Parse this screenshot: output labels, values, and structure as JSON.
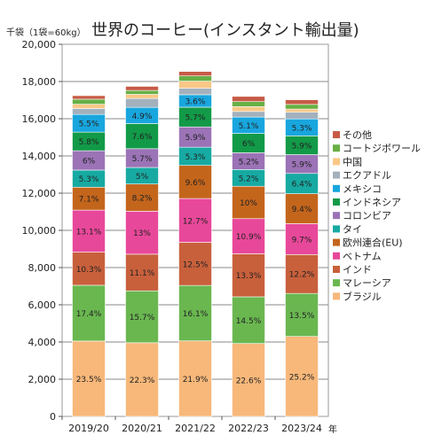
{
  "chart_data": {
    "type": "bar",
    "stacked": true,
    "title": "世界のコーヒー(インスタント輸出量)",
    "ylabel": "千袋（1袋=60kg）",
    "xunit": "年",
    "categories": [
      "2019/20",
      "2020/21",
      "2021/22",
      "2022/23",
      "2023/24"
    ],
    "ylim": [
      0,
      20000
    ],
    "yticks": [
      0,
      2000,
      4000,
      6000,
      8000,
      10000,
      12000,
      14000,
      16000,
      18000,
      20000
    ],
    "ytick_labels": [
      "0",
      "2,000",
      "4,000",
      "6,000",
      "8,000",
      "10,000",
      "12,000",
      "14,000",
      "16,000",
      "18,000",
      "20,000"
    ],
    "grid": true,
    "legend_position": "right",
    "series": [
      {
        "name": "ブラジル",
        "color": "#f7b87a",
        "values": [
          4050,
          3960,
          4060,
          3920,
          4300
        ],
        "labels": [
          "23.5%",
          "22.3%",
          "21.9%",
          "22.6%",
          "25.2%"
        ]
      },
      {
        "name": "マレーシア",
        "color": "#6ab750",
        "values": [
          3000,
          2790,
          2980,
          2510,
          2310
        ],
        "labels": [
          "17.4%",
          "15.7%",
          "16.1%",
          "14.5%",
          "13.5%"
        ]
      },
      {
        "name": "インド",
        "color": "#c8603c",
        "values": [
          1780,
          1970,
          2320,
          2310,
          2090
        ],
        "labels": [
          "10.3%",
          "11.1%",
          "12.5%",
          "13.3%",
          "12.2%"
        ]
      },
      {
        "name": "ベトナム",
        "color": "#e8489a",
        "values": [
          2260,
          2310,
          2350,
          1890,
          1660
        ],
        "labels": [
          "13.1%",
          "13%",
          "12.7%",
          "10.9%",
          "9.7%"
        ]
      },
      {
        "name": "欧州連合(EU)",
        "color": "#c4651c",
        "values": [
          1230,
          1460,
          1780,
          1740,
          1610
        ],
        "labels": [
          "7.1%",
          "8.2%",
          "9.6%",
          "10%",
          "9.4%"
        ]
      },
      {
        "name": "タイ",
        "color": "#17aaa2",
        "values": [
          920,
          890,
          980,
          900,
          1090
        ],
        "labels": [
          "5.3%",
          "5%",
          "5.3%",
          "5.2%",
          "6.4%"
        ]
      },
      {
        "name": "コロンビア",
        "color": "#9b73b6",
        "values": [
          1040,
          1010,
          1090,
          900,
          1010
        ],
        "labels": [
          "6%",
          "5.7%",
          "5.9%",
          "5.2%",
          "5.9%"
        ]
      },
      {
        "name": "インドネシア",
        "color": "#129a48",
        "values": [
          1000,
          1350,
          1060,
          1040,
          1010
        ],
        "labels": [
          "5.8%",
          "7.6%",
          "5.7%",
          "6%",
          "5.9%"
        ]
      },
      {
        "name": "メキシコ",
        "color": "#18a6de",
        "values": [
          950,
          870,
          670,
          880,
          910
        ],
        "labels": [
          "5.5%",
          "4.9%",
          "3.6%",
          "5.1%",
          "5.3%"
        ]
      },
      {
        "name": "エクアドル",
        "color": "#a3b1bd",
        "values": [
          320,
          480,
          350,
          300,
          360
        ],
        "labels": [
          "",
          "",
          "",
          "",
          ""
        ]
      },
      {
        "name": "中国",
        "color": "#f9c887",
        "values": [
          230,
          220,
          380,
          260,
          170
        ],
        "labels": [
          "",
          "",
          "",
          "",
          ""
        ]
      },
      {
        "name": "コートジボワール",
        "color": "#68b045",
        "values": [
          270,
          210,
          280,
          270,
          250
        ],
        "labels": [
          "",
          "",
          "",
          "",
          ""
        ]
      },
      {
        "name": "その他",
        "color": "#c75b46",
        "values": [
          190,
          220,
          240,
          280,
          250
        ],
        "labels": [
          "",
          "",
          "",
          "",
          ""
        ]
      }
    ]
  }
}
